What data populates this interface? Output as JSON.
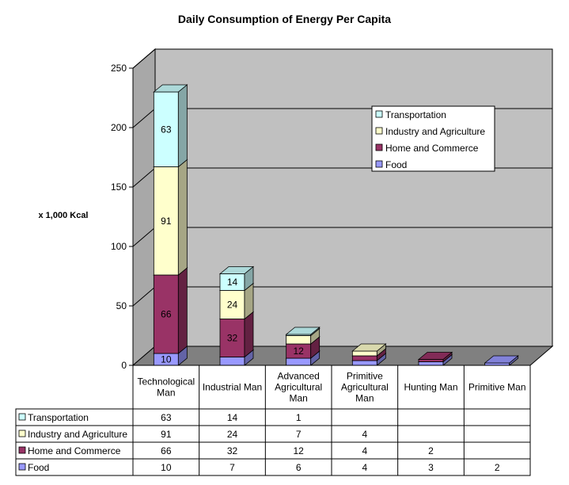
{
  "chart_data": {
    "type": "bar",
    "stacked": true,
    "projection": "3d",
    "title": "Daily Consumption of Energy Per Capita",
    "ylabel": "x 1,000 Kcal",
    "ylim": [
      0,
      250
    ],
    "yticks": [
      0,
      50,
      100,
      150,
      200,
      250
    ],
    "grid": true,
    "legend_position": "upper-right",
    "categories": [
      [
        "Technological",
        "Man"
      ],
      [
        "Industrial Man"
      ],
      [
        "Advanced",
        "Agricultural",
        "Man"
      ],
      [
        "Primitive",
        "Agricultural",
        "Man"
      ],
      [
        "Hunting Man"
      ],
      [
        "Primitive Man"
      ]
    ],
    "series": [
      {
        "name": "Food",
        "color": "#9999FF",
        "values": [
          10,
          7,
          6,
          4,
          3,
          2
        ]
      },
      {
        "name": "Home and Commerce",
        "color": "#993366",
        "values": [
          66,
          32,
          12,
          4,
          2,
          null
        ]
      },
      {
        "name": "Industry and Agriculture",
        "color": "#FFFFCC",
        "values": [
          91,
          24,
          7,
          4,
          null,
          null
        ]
      },
      {
        "name": "Transportation",
        "color": "#CCFFFF",
        "values": [
          63,
          14,
          1,
          null,
          null,
          null
        ]
      }
    ],
    "data_labels_shown": [
      {
        "series": "Food",
        "category": 0,
        "text": "10"
      },
      {
        "series": "Home and Commerce",
        "category": 0,
        "text": "66"
      },
      {
        "series": "Industry and Agriculture",
        "category": 0,
        "text": "91"
      },
      {
        "series": "Transportation",
        "category": 0,
        "text": "63"
      },
      {
        "series": "Home and Commerce",
        "category": 1,
        "text": "32"
      },
      {
        "series": "Industry and Agriculture",
        "category": 1,
        "text": "24"
      },
      {
        "series": "Transportation",
        "category": 1,
        "text": "14"
      },
      {
        "series": "Home and Commerce",
        "category": 2,
        "text": "12"
      }
    ],
    "colors": {
      "wall": "#C0C0C0",
      "floor": "#808080",
      "gridline": "#000000"
    }
  }
}
